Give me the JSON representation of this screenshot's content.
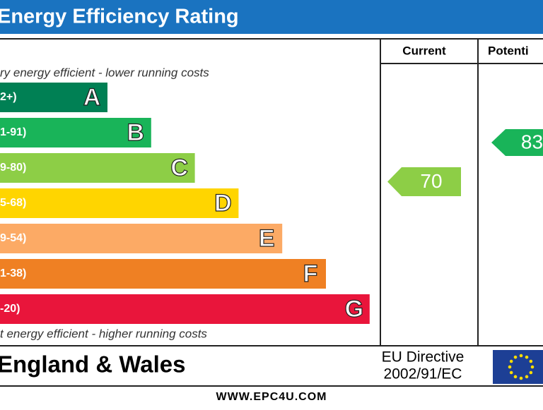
{
  "header": {
    "title": "Energy Efficiency Rating"
  },
  "columns": {
    "current": "Current",
    "potential": "Potenti"
  },
  "top_note": "ry energy efficient - lower running costs",
  "bottom_note": "t energy efficient - higher running costs",
  "bands": [
    {
      "range": "2+)",
      "letter": "A",
      "color": "#008054"
    },
    {
      "range": "1-91)",
      "letter": "B",
      "color": "#19b459"
    },
    {
      "range": "9-80)",
      "letter": "C",
      "color": "#8dce46"
    },
    {
      "range": "5-68)",
      "letter": "D",
      "color": "#ffd500"
    },
    {
      "range": "9-54)",
      "letter": "E",
      "color": "#fcaa65"
    },
    {
      "range": "1-38)",
      "letter": "F",
      "color": "#ef8023"
    },
    {
      "range": "-20)",
      "letter": "G",
      "color": "#e9153b"
    }
  ],
  "current": {
    "value": 70,
    "color": "#8dce46"
  },
  "potential": {
    "value": 83,
    "color": "#19b459"
  },
  "footer": {
    "region": "England & Wales",
    "directive_line1": "EU Directive",
    "directive_line2": "2002/91/EC"
  },
  "website": "WWW.EPC4U.COM"
}
